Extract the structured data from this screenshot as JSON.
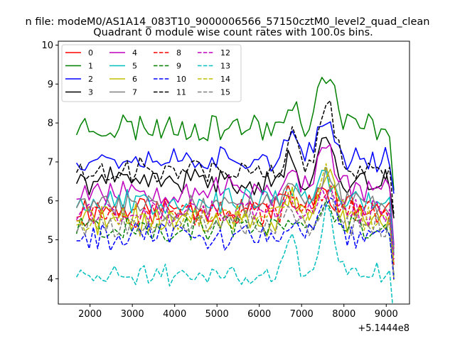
{
  "chart_data": {
    "type": "line",
    "suptitle": "n file: modeM0/AS1A14_083T10_9000006566_57150cztM0_level2_quad_clean",
    "title": "Quadrant 0 module wise count rates with 100.0s bins.",
    "xlabel": "",
    "ylabel": "",
    "x_offset_label": "+5.1444e8",
    "xlim": [
      1250,
      9550
    ],
    "ylim": [
      3.35,
      10.1
    ],
    "xticks": [
      2000,
      3000,
      4000,
      5000,
      6000,
      7000,
      8000,
      9000
    ],
    "yticks": [
      4,
      5,
      6,
      7,
      8,
      9,
      10
    ],
    "x_start": 1680,
    "x_step": 100,
    "n_points": 76,
    "legend_position": "upper-left",
    "series": [
      {
        "name": "0",
        "color": "#ff0000",
        "dash": "solid",
        "base": 5.8,
        "amp": 0.35,
        "peak": 0.55,
        "seed": 11
      },
      {
        "name": "1",
        "color": "#008000",
        "dash": "solid",
        "base": 7.9,
        "amp": 0.35,
        "peak": 1.4,
        "seed": 23
      },
      {
        "name": "2",
        "color": "#0000ff",
        "dash": "solid",
        "base": 7.1,
        "amp": 0.3,
        "peak": 0.9,
        "seed": 37
      },
      {
        "name": "3",
        "color": "#000000",
        "dash": "solid",
        "base": 6.5,
        "amp": 0.3,
        "peak": 1.0,
        "seed": 41
      },
      {
        "name": "4",
        "color": "#bf00bf",
        "dash": "solid",
        "base": 6.3,
        "amp": 0.35,
        "peak": 1.1,
        "seed": 53
      },
      {
        "name": "5",
        "color": "#00bfbf",
        "dash": "solid",
        "base": 6.0,
        "amp": 0.3,
        "peak": 0.6,
        "seed": 67
      },
      {
        "name": "6",
        "color": "#bfbf00",
        "dash": "solid",
        "base": 5.5,
        "amp": 0.35,
        "peak": 1.2,
        "seed": 71
      },
      {
        "name": "7",
        "color": "#808080",
        "dash": "solid",
        "base": 5.9,
        "amp": 0.3,
        "peak": 0.8,
        "seed": 83
      },
      {
        "name": "8",
        "color": "#ff0000",
        "dash": "dashed",
        "base": 5.7,
        "amp": 0.3,
        "peak": 0.7,
        "seed": 97
      },
      {
        "name": "9",
        "color": "#008000",
        "dash": "dashed",
        "base": 5.3,
        "amp": 0.3,
        "peak": 0.6,
        "seed": 101
      },
      {
        "name": "10",
        "color": "#0000ff",
        "dash": "dashed",
        "base": 5.1,
        "amp": 0.3,
        "peak": 1.0,
        "seed": 113
      },
      {
        "name": "11",
        "color": "#000000",
        "dash": "dashed",
        "base": 6.8,
        "amp": 0.3,
        "peak": 1.7,
        "seed": 127
      },
      {
        "name": "12",
        "color": "#bf00bf",
        "dash": "dashed",
        "base": 5.7,
        "amp": 0.3,
        "peak": 0.6,
        "seed": 131
      },
      {
        "name": "13",
        "color": "#00bfbf",
        "dash": "dashed",
        "base": 4.1,
        "amp": 0.25,
        "peak": 1.6,
        "seed": 149
      },
      {
        "name": "14",
        "color": "#bfbf00",
        "dash": "dashed",
        "base": 5.6,
        "amp": 0.3,
        "peak": 1.0,
        "seed": 157
      },
      {
        "name": "15",
        "color": "#808080",
        "dash": "dashed",
        "base": 5.4,
        "amp": 0.3,
        "peak": 0.7,
        "seed": 163
      }
    ]
  }
}
